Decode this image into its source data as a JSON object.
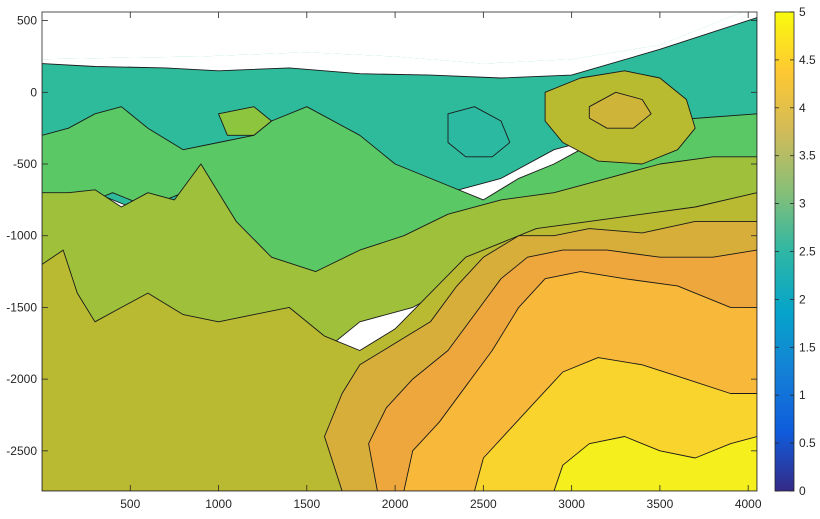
{
  "chart_data": {
    "type": "filled-contour",
    "colormap": "parula",
    "xlim": [
      0,
      4050
    ],
    "ylim": [
      -2780,
      560
    ],
    "x_ticks": [
      500,
      1000,
      1500,
      2000,
      2500,
      3000,
      3500,
      4000
    ],
    "y_ticks": [
      500,
      0,
      -500,
      -1000,
      -1500,
      -2000,
      -2500
    ],
    "colorbar": {
      "range": [
        0,
        5
      ],
      "ticks": [
        "0",
        "0.5",
        "1",
        "1.5",
        "2",
        "2.5",
        "3",
        "3.5",
        "4",
        "4.5",
        "5"
      ]
    },
    "levels": [
      2.5,
      2.75,
      3,
      3.25,
      3.5,
      3.75,
      4,
      4.25,
      4.5,
      4.75
    ],
    "bands": [
      {
        "level": 2.7,
        "color": "#22b7a6",
        "polygon": [
          [
            0,
            230
          ],
          [
            400,
            240
          ],
          [
            900,
            250
          ],
          [
            1500,
            280
          ],
          [
            2000,
            250
          ],
          [
            2500,
            200
          ],
          [
            3000,
            230
          ],
          [
            3500,
            330
          ],
          [
            4050,
            600
          ],
          [
            4050,
            560
          ],
          [
            0,
            560
          ]
        ],
        "top_edge": true
      },
      {
        "level": 2.95,
        "color": "#2dbb9c",
        "polygon": [
          [
            0,
            200
          ],
          [
            300,
            180
          ],
          [
            700,
            170
          ],
          [
            1000,
            150
          ],
          [
            1400,
            170
          ],
          [
            1800,
            130
          ],
          [
            2200,
            120
          ],
          [
            2600,
            100
          ],
          [
            3000,
            120
          ],
          [
            3500,
            300
          ],
          [
            4050,
            520
          ],
          [
            4050,
            -150
          ],
          [
            3800,
            -200
          ],
          [
            3500,
            -250
          ],
          [
            3200,
            -300
          ],
          [
            2900,
            -400
          ],
          [
            2600,
            -600
          ],
          [
            2300,
            -700
          ],
          [
            2000,
            -800
          ],
          [
            1700,
            -800
          ],
          [
            1500,
            -900
          ],
          [
            1300,
            -1100
          ],
          [
            1100,
            -1150
          ],
          [
            900,
            -1100
          ],
          [
            700,
            -900
          ],
          [
            500,
            -800
          ],
          [
            300,
            -700
          ],
          [
            150,
            -600
          ],
          [
            0,
            -550
          ]
        ]
      },
      {
        "level": 3.15,
        "color": "#5ac864",
        "polygon": [
          [
            0,
            -300
          ],
          [
            150,
            -250
          ],
          [
            300,
            -150
          ],
          [
            450,
            -100
          ],
          [
            600,
            -250
          ],
          [
            800,
            -400
          ],
          [
            1000,
            -350
          ],
          [
            1200,
            -300
          ],
          [
            1300,
            -200
          ],
          [
            1500,
            -100
          ],
          [
            1800,
            -300
          ],
          [
            2000,
            -500
          ],
          [
            2300,
            -650
          ],
          [
            2500,
            -750
          ],
          [
            2700,
            -600
          ],
          [
            2900,
            -500
          ],
          [
            3200,
            -300
          ],
          [
            3500,
            -200
          ],
          [
            4050,
            -150
          ],
          [
            4050,
            -1000
          ],
          [
            3600,
            -800
          ],
          [
            3200,
            -700
          ],
          [
            2800,
            -800
          ],
          [
            2500,
            -900
          ],
          [
            2200,
            -1000
          ],
          [
            1900,
            -1100
          ],
          [
            1600,
            -1300
          ],
          [
            1400,
            -1200
          ],
          [
            1200,
            -1100
          ],
          [
            1000,
            -1000
          ],
          [
            800,
            -700
          ],
          [
            600,
            -800
          ],
          [
            400,
            -700
          ],
          [
            200,
            -800
          ],
          [
            0,
            -800
          ]
        ]
      },
      {
        "level": 3.45,
        "color": "#9fc03a",
        "polygon": [
          [
            0,
            -700
          ],
          [
            150,
            -700
          ],
          [
            300,
            -680
          ],
          [
            450,
            -800
          ],
          [
            600,
            -700
          ],
          [
            750,
            -750
          ],
          [
            900,
            -500
          ],
          [
            1100,
            -900
          ],
          [
            1300,
            -1150
          ],
          [
            1550,
            -1250
          ],
          [
            1800,
            -1100
          ],
          [
            2050,
            -1000
          ],
          [
            2300,
            -850
          ],
          [
            2600,
            -750
          ],
          [
            2900,
            -700
          ],
          [
            3200,
            -600
          ],
          [
            3500,
            -500
          ],
          [
            3800,
            -450
          ],
          [
            4050,
            -450
          ],
          [
            4050,
            -1400
          ],
          [
            3700,
            -1200
          ],
          [
            3400,
            -1100
          ],
          [
            3000,
            -1050
          ],
          [
            2700,
            -1100
          ],
          [
            2400,
            -1300
          ],
          [
            2100,
            -1500
          ],
          [
            1800,
            -1600
          ],
          [
            1600,
            -1800
          ],
          [
            1300,
            -1900
          ],
          [
            1000,
            -2000
          ],
          [
            700,
            -2200
          ],
          [
            400,
            -2300
          ],
          [
            200,
            -2600
          ],
          [
            0,
            -2700
          ]
        ]
      },
      {
        "level": 3.6,
        "color": "#b9b932",
        "polygon": [
          [
            0,
            -1200
          ],
          [
            120,
            -1100
          ],
          [
            200,
            -1400
          ],
          [
            300,
            -1600
          ],
          [
            450,
            -1500
          ],
          [
            600,
            -1400
          ],
          [
            800,
            -1550
          ],
          [
            1000,
            -1600
          ],
          [
            1200,
            -1550
          ],
          [
            1400,
            -1500
          ],
          [
            1600,
            -1700
          ],
          [
            1800,
            -1800
          ],
          [
            2000,
            -1650
          ],
          [
            2200,
            -1400
          ],
          [
            2400,
            -1150
          ],
          [
            2600,
            -1050
          ],
          [
            2800,
            -950
          ],
          [
            3100,
            -900
          ],
          [
            3400,
            -850
          ],
          [
            3700,
            -800
          ],
          [
            4050,
            -700
          ],
          [
            4050,
            -2780
          ],
          [
            0,
            -2780
          ]
        ]
      },
      {
        "level": 3.85,
        "color": "#d7ae3a",
        "polygon": [
          [
            1700,
            -2780
          ],
          [
            1600,
            -2400
          ],
          [
            1700,
            -2100
          ],
          [
            1800,
            -1900
          ],
          [
            2000,
            -1750
          ],
          [
            2200,
            -1600
          ],
          [
            2350,
            -1350
          ],
          [
            2500,
            -1150
          ],
          [
            2700,
            -1000
          ],
          [
            2900,
            -1000
          ],
          [
            3100,
            -950
          ],
          [
            3400,
            -980
          ],
          [
            3700,
            -900
          ],
          [
            4050,
            -900
          ],
          [
            4050,
            -2780
          ]
        ]
      },
      {
        "level": 4.05,
        "color": "#eea73c",
        "polygon": [
          [
            1900,
            -2780
          ],
          [
            1850,
            -2450
          ],
          [
            1950,
            -2200
          ],
          [
            2100,
            -2000
          ],
          [
            2300,
            -1800
          ],
          [
            2450,
            -1550
          ],
          [
            2600,
            -1300
          ],
          [
            2750,
            -1150
          ],
          [
            2950,
            -1100
          ],
          [
            3200,
            -1100
          ],
          [
            3500,
            -1150
          ],
          [
            3800,
            -1150
          ],
          [
            4050,
            -1100
          ],
          [
            4050,
            -2780
          ]
        ]
      },
      {
        "level": 4.3,
        "color": "#f8b83a",
        "polygon": [
          [
            2050,
            -2780
          ],
          [
            2100,
            -2500
          ],
          [
            2250,
            -2300
          ],
          [
            2400,
            -2050
          ],
          [
            2550,
            -1800
          ],
          [
            2700,
            -1500
          ],
          [
            2850,
            -1300
          ],
          [
            3050,
            -1250
          ],
          [
            3300,
            -1300
          ],
          [
            3600,
            -1350
          ],
          [
            3900,
            -1500
          ],
          [
            4050,
            -1500
          ],
          [
            4050,
            -2780
          ]
        ]
      },
      {
        "level": 4.55,
        "color": "#f8d42c",
        "polygon": [
          [
            2450,
            -2780
          ],
          [
            2500,
            -2550
          ],
          [
            2650,
            -2350
          ],
          [
            2800,
            -2150
          ],
          [
            2950,
            -1950
          ],
          [
            3150,
            -1850
          ],
          [
            3400,
            -1900
          ],
          [
            3650,
            -2000
          ],
          [
            3900,
            -2100
          ],
          [
            4050,
            -2100
          ],
          [
            4050,
            -2780
          ]
        ]
      },
      {
        "level": 4.8,
        "color": "#f5ef1e",
        "polygon": [
          [
            2900,
            -2780
          ],
          [
            2950,
            -2600
          ],
          [
            3100,
            -2450
          ],
          [
            3300,
            -2400
          ],
          [
            3500,
            -2500
          ],
          [
            3700,
            -2550
          ],
          [
            3900,
            -2450
          ],
          [
            4050,
            -2400
          ],
          [
            4050,
            -2780
          ]
        ]
      },
      {
        "level": 2.7,
        "color": "#2bb9a2",
        "polygon": [
          [
            2300,
            -150
          ],
          [
            2450,
            -100
          ],
          [
            2600,
            -200
          ],
          [
            2650,
            -350
          ],
          [
            2550,
            -450
          ],
          [
            2400,
            -450
          ],
          [
            2300,
            -350
          ]
        ]
      },
      {
        "level": 3.65,
        "color": "#b8bb30",
        "polygon": [
          [
            2850,
            0
          ],
          [
            3050,
            100
          ],
          [
            3300,
            150
          ],
          [
            3500,
            100
          ],
          [
            3650,
            -50
          ],
          [
            3700,
            -250
          ],
          [
            3600,
            -400
          ],
          [
            3400,
            -500
          ],
          [
            3150,
            -480
          ],
          [
            2950,
            -350
          ],
          [
            2850,
            -200
          ]
        ]
      },
      {
        "level": 3.85,
        "color": "#cfb43a",
        "polygon": [
          [
            3100,
            -100
          ],
          [
            3250,
            0
          ],
          [
            3400,
            -50
          ],
          [
            3450,
            -150
          ],
          [
            3350,
            -250
          ],
          [
            3200,
            -250
          ],
          [
            3100,
            -180
          ]
        ]
      },
      {
        "level": 3.45,
        "color": "#8ec53e",
        "polygon": [
          [
            1000,
            -150
          ],
          [
            1200,
            -100
          ],
          [
            1300,
            -200
          ],
          [
            1200,
            -300
          ],
          [
            1050,
            -300
          ]
        ]
      }
    ]
  }
}
